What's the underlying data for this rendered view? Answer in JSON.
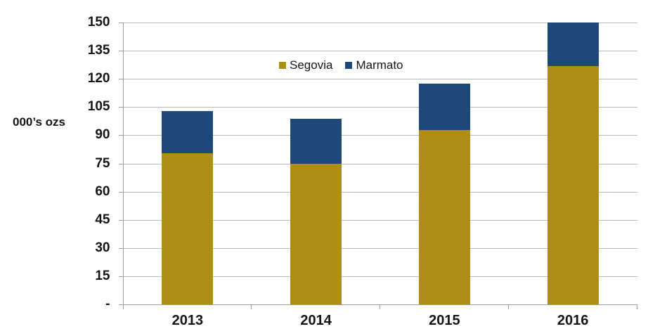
{
  "chart_data": {
    "type": "bar",
    "stacked": true,
    "title": "",
    "ylabel": "000’s ozs",
    "xlabel": "",
    "categories": [
      "2013",
      "2014",
      "2015",
      "2016"
    ],
    "series": [
      {
        "name": "Segovia",
        "color": "#AE8D1A",
        "values": [
          80.4,
          74.7,
          92.9,
          126.7
        ]
      },
      {
        "name": "Marmato",
        "color": "#1F4878",
        "values": [
          22.4,
          24.0,
          24.4,
          23.2
        ]
      }
    ],
    "totals": [
      102.8,
      98.7,
      117.3,
      149.9
    ],
    "ylim": [
      0,
      150
    ],
    "ytick_step": 15,
    "ytick_labels": [
      "-",
      "15",
      "30",
      "45",
      "60",
      "75",
      "90",
      "105",
      "120",
      "135",
      "150"
    ],
    "grid": true,
    "legend_position": "inside-top",
    "colors": {
      "gridline": "#b9b9b9",
      "axis": "#9d9d9d",
      "text": "#151515",
      "background": "#ffffff"
    }
  }
}
